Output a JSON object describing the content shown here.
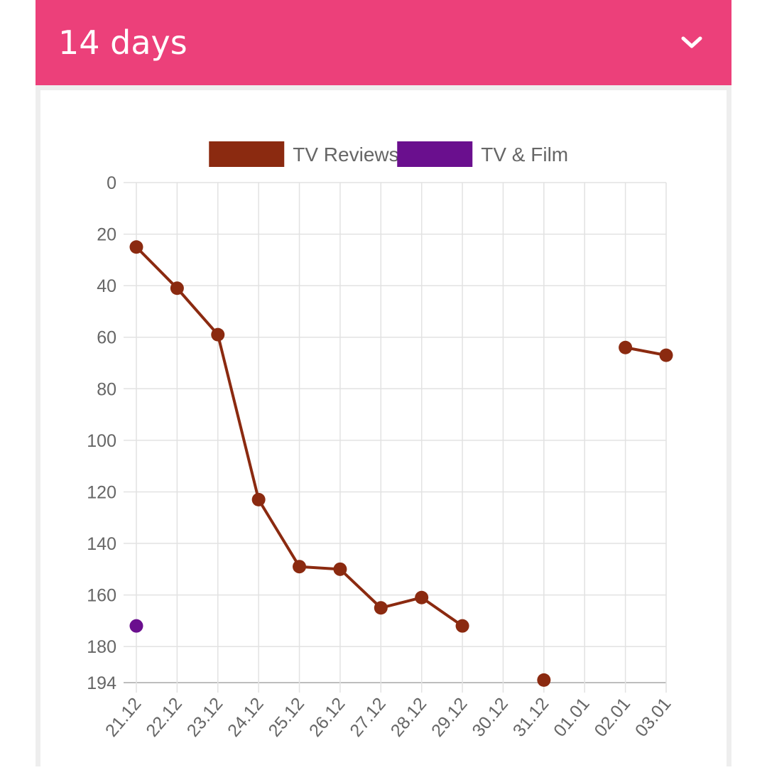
{
  "header": {
    "title": "14 days",
    "toggle_icon": "chevron-down-icon"
  },
  "colors": {
    "header_bg": "#ec407a",
    "tv_reviews": "#8b2a10",
    "tv_film": "#6a0f8e"
  },
  "chart_data": {
    "type": "line",
    "title": "",
    "xlabel": "",
    "ylabel": "",
    "y_reversed": true,
    "ylim": [
      0,
      194
    ],
    "y_ticks": [
      0,
      20,
      40,
      60,
      80,
      100,
      120,
      140,
      160,
      180,
      194
    ],
    "categories": [
      "21.12",
      "22.12",
      "23.12",
      "24.12",
      "25.12",
      "26.12",
      "27.12",
      "28.12",
      "29.12",
      "30.12",
      "31.12",
      "01.01",
      "02.01",
      "03.01"
    ],
    "grid": true,
    "legend_position": "top",
    "series": [
      {
        "name": "TV Reviews",
        "color": "#8b2a10",
        "values": [
          25,
          41,
          59,
          123,
          149,
          150,
          165,
          161,
          172,
          null,
          193,
          null,
          64,
          67
        ]
      },
      {
        "name": "TV & Film",
        "color": "#6a0f8e",
        "values": [
          172,
          null,
          null,
          null,
          null,
          null,
          null,
          null,
          null,
          null,
          null,
          null,
          null,
          null
        ]
      }
    ]
  }
}
